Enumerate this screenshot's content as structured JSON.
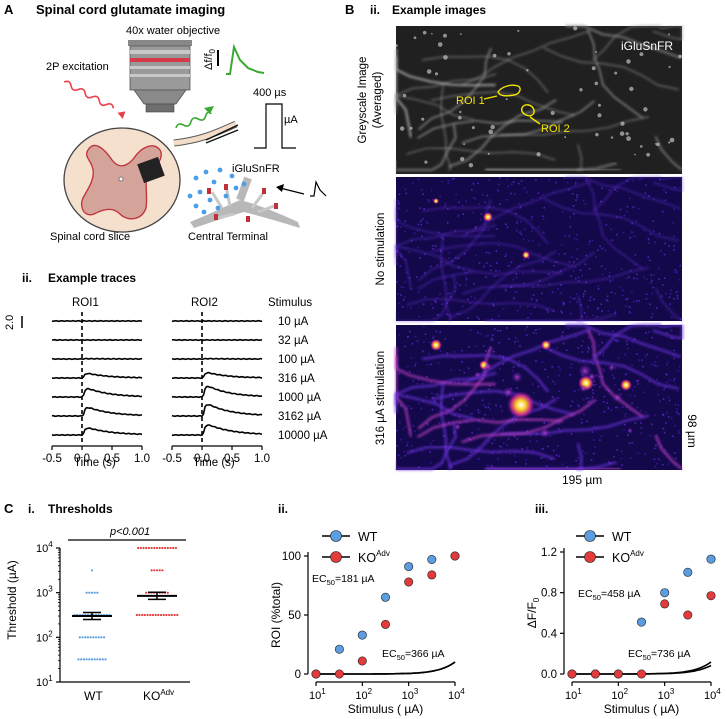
{
  "panel_A": {
    "letter": "A",
    "title": "Spinal cord glutamate imaging",
    "objective": "40x water objective",
    "excitation": "2P excitation",
    "dff_label": "Δf/f",
    "dff_sub": "0",
    "pulse_duration": "400 µs",
    "pulse_unit": "µA",
    "slice_label": "Spinal cord slice",
    "sensor_label": "iGluSnFR",
    "terminal_label": "Central Terminal",
    "traces_num": "ii.",
    "traces_title": "Example traces",
    "roi1": "ROI1",
    "roi2": "ROI2",
    "stimulus_header": "Stimulus",
    "scale_value": "2.0",
    "stimuli": [
      "10 µA",
      "32 µA",
      "100 µA",
      "316 µA",
      "1000 µA",
      "3162 µA",
      "10000 µA"
    ],
    "time_ticks": [
      "-0.5",
      "0.0",
      "0.5",
      "1.0"
    ],
    "time_label": "Time (s)"
  },
  "panel_B": {
    "letter": "B",
    "num": "ii.",
    "title": "Example images",
    "sensor": "iGluSnFR",
    "row_labels": [
      "Greyscale Image",
      "(Averaged)",
      "No stimulation",
      "316 µA stimulation"
    ],
    "roi1": "ROI 1",
    "roi2": "ROI 2",
    "scale_x": "195 µm",
    "scale_y": "98 µm"
  },
  "panel_C": {
    "letter": "C",
    "sub_i": "i.",
    "title_i": "Thresholds",
    "sub_ii": "ii.",
    "sub_iii": "iii.",
    "pvalue": "p<0.001",
    "threshold_ylabel": "Threshold (µA)",
    "groups": [
      "WT",
      "KO"
    ],
    "ko_sup": "Adv",
    "legend": [
      "WT",
      "KO"
    ],
    "ec50_ii": [
      "EC50=181 µA",
      "EC50=366 µA"
    ],
    "ec50_iii": [
      "EC50=458 µA",
      "EC50=736 µA"
    ]
  },
  "colors": {
    "wt": "#5b9de0",
    "ko": "#e23b3b",
    "green": "#3aa832",
    "red": "#e8404a",
    "yellow": "#f5e600"
  },
  "chart_data": [
    {
      "type": "scatter",
      "title": "Thresholds",
      "xlabel": "",
      "ylabel": "Threshold (µA)",
      "yscale": "log",
      "ylim": [
        10,
        10000
      ],
      "categories": [
        "WT",
        "KO^Adv"
      ],
      "series": [
        {
          "name": "WT",
          "values": {
            "10000": 0,
            "3162": 1,
            "1000": 5,
            "316": 14,
            "100": 10,
            "32": 11
          },
          "mean": 300
        },
        {
          "name": "KO^Adv",
          "values": {
            "10000": 15,
            "3162": 5,
            "1000": 9,
            "316": 16,
            "100": 0,
            "32": 0
          },
          "mean": 850
        }
      ],
      "annotation": "p<0.001"
    },
    {
      "type": "line",
      "title": "",
      "xlabel": "Stimulus ( µA)",
      "ylabel": "ROI (%total)",
      "xscale": "log",
      "xlim": [
        10,
        10000
      ],
      "ylim": [
        0,
        100
      ],
      "x": [
        10,
        32,
        100,
        316,
        1000,
        3162,
        10000
      ],
      "series": [
        {
          "name": "WT",
          "values": [
            0,
            21,
            33,
            65,
            91,
            97,
            100
          ]
        },
        {
          "name": "KO^Adv",
          "values": [
            0,
            0,
            11,
            42,
            78,
            84,
            100
          ]
        }
      ],
      "ec50": [
        "EC50=181 µA",
        "EC50=366 µA"
      ]
    },
    {
      "type": "line",
      "title": "",
      "xlabel": "Stimulus ( µA)",
      "ylabel": "ΔF/F0",
      "xscale": "log",
      "xlim": [
        10,
        10000
      ],
      "ylim": [
        0,
        1.2
      ],
      "x": [
        10,
        32,
        100,
        316,
        1000,
        3162,
        10000
      ],
      "series": [
        {
          "name": "WT",
          "values": [
            0,
            0,
            0,
            0.51,
            0.8,
            1.0,
            1.13
          ]
        },
        {
          "name": "KO^Adv",
          "values": [
            0,
            0,
            0,
            0,
            0.69,
            0.58,
            0.77
          ]
        }
      ],
      "ec50": [
        "EC50=458 µA",
        "EC50=736 µA"
      ]
    }
  ]
}
